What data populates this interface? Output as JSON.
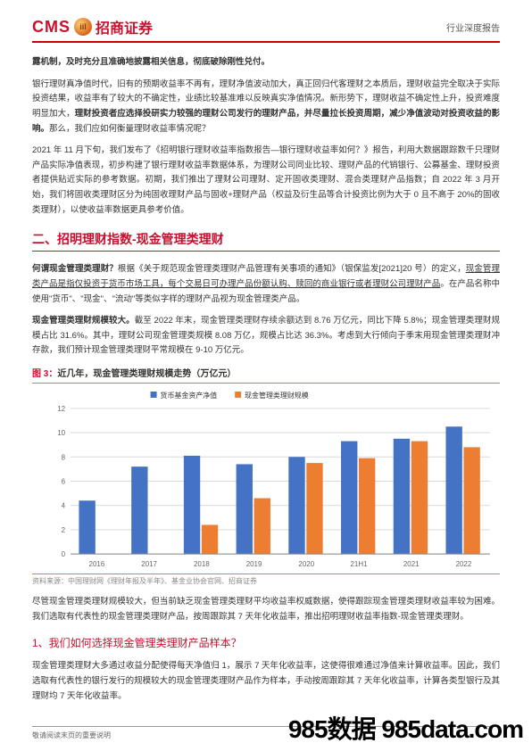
{
  "header": {
    "logo_cms": "CMS",
    "logo_circle": "iil",
    "logo_cn": "招商证券",
    "right": "行业深度报告"
  },
  "p1_bold": "露机制，及时充分且准确地披露相关信息，彻底破除刚性兑付。",
  "p2_a": "银行理财真净值时代，旧有的预期收益率不再有，理财净值波动加大，真正回归代客理财之本质后，理财收益完全取决于实际投资结果，收益率有了较大的不确定性，业绩比较基准难以反映真实净值情况。新形势下，理财收益不确定性上升，投资难度明显加大，",
  "p2_bold": "理财投资者应选择投研实力较强的理财公司发行的理财产品，并尽量拉长投资周期，减少净值波动对投资收益的影响。",
  "p2_b": "那么，我们应如何衡量理财收益率情况呢？",
  "p3": "2021 年 11 月下旬，我们发布了《招明银行理财收益率指数报告—银行理财收益率如何？》报告，利用大数据跟踪数千只理财产品实际净值表现，初步构建了银行理财收益率数据体系，为理财公司同业比较、理财产品的代销银行、公募基金、理财投资者提供贴近实际的参考数据。初期，我们推出了理财公司理财、定开固收类理财、混合类理财产品指数；自 2022 年 3 月开始，我们将固收类理财区分为纯固收理财产品与固收+理财产品（权益及衍生品等合计投资比例为大于 0 且不高于 20%的固收类理财），以使收益率数据更具参考价值。",
  "section2_title": "二、招明理财指数-现金管理类理财",
  "p4_a": "何谓现金管理类理财？",
  "p4_b": "根据《关于规范现金管理类理财产品管理有关事项的通知》（银保监发[2021]20 号）的定义，",
  "p4_u": "现金管理类产品是指仅投资于货币市场工具，每个交易日可办理产品份额认购、赎回的商业银行或者理财公司理财产品",
  "p4_c": "。在产品名称中使用\"货币\"、\"现金\"、\"流动\"等类似字样的理财产品视为现金管理类产品。",
  "p5_a": "现金管理类理财规模较大。",
  "p5_b": "截至 2022 年末，现金管理类理财存续余额达到 8.76 万亿元，同比下降 5.8%；现金管理类理财规模占比 31.6%。其中，理财公司现金管理类规模 8.08 万亿，规模占比达 36.3%。考虑到大行倾向于季末用现金管理类理财冲存款，我们预计现金管理类理财平常规模在 9-10 万亿元。",
  "fig_label": "图 3：",
  "fig_title": "近几年，现金管理类理财规模走势（万亿元）",
  "source": "资料来源：中国理财网《理财年报及半年》、基金业协会官网、招商证券",
  "p6": "尽管现金管理类理财规模较大，但当前缺乏现金管理类理财平均收益率权威数据，使得跟踪现金管理类理财收益率较为困难。我们选取有代表性的现金管理类理财产品，按周跟踪其 7 天年化收益率，推出招明理财收益率指数-现金管理类理财。",
  "subsection_title": "1、我们如何选择现金管理类理财产品样本？",
  "p7": "现金管理类理财大多通过收益分配使得每天净值归 1，展示 7 天年化收益率，这使得很难通过净值来计算收益率。因此，我们选取有代表性的银行发行的规模较大的现金管理类理财产品作为样本，手动按周跟踪其 7 天年化收益率，计算各类型银行及其理财均 7 天年化收益率。",
  "footer": "敬请阅读末页的重要说明",
  "watermark": "985数据 985data.com",
  "chart": {
    "type": "bar",
    "categories": [
      "2016",
      "2017",
      "2018",
      "2019",
      "2020",
      "21H1",
      "2021",
      "2022"
    ],
    "series": [
      {
        "name": "货币基金资产净值",
        "color": "#4472c4",
        "values": [
          4.4,
          7.2,
          8.1,
          7.4,
          8.0,
          9.3,
          9.5,
          10.5
        ]
      },
      {
        "name": "现金管理类理财规模",
        "color": "#ed7d31",
        "values": [
          null,
          null,
          2.4,
          4.6,
          7.5,
          7.9,
          9.3,
          8.8
        ]
      }
    ],
    "ylim": [
      0,
      12
    ],
    "ytick_step": 2,
    "background": "#ffffff",
    "grid_color": "#d9d9d9",
    "axis_fontsize": 8,
    "legend_fontsize": 8,
    "bar_group_width": 0.68
  }
}
